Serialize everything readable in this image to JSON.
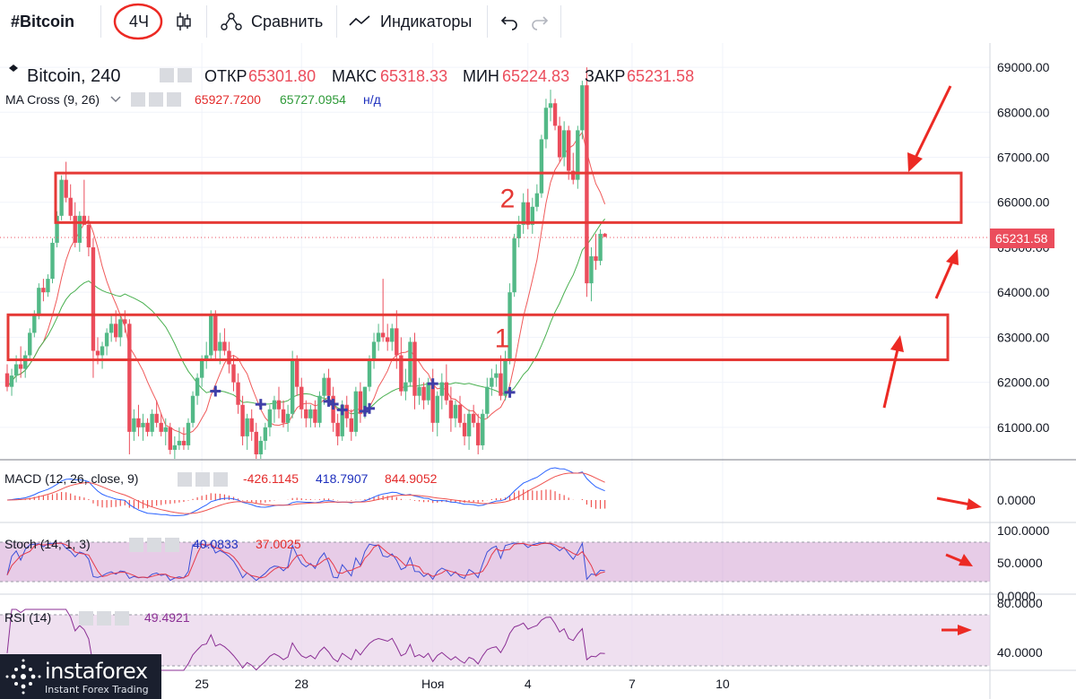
{
  "toolbar": {
    "symbol": "#Bitcoin",
    "interval": "4Ч",
    "compare_label": "Сравнить",
    "indicators_label": "Индикаторы"
  },
  "legend": {
    "title": "Bitcoin, 240",
    "open_label": "ОТКР",
    "open_value": "65301.80",
    "high_label": "МАКС",
    "high_value": "65318.33",
    "low_label": "МИН",
    "low_value": "65224.83",
    "close_label": "ЗАКР",
    "close_value": "65231.58",
    "ma_label": "MA Cross (9, 26)",
    "ma_fast": "65927.7200",
    "ma_slow": "65727.0954",
    "ma_na": "н/д"
  },
  "macd": {
    "label": "MACD (12, 26, close, 9)",
    "v1": "-426.1145",
    "v2": "418.7907",
    "v3": "844.9052"
  },
  "stoch": {
    "label": "Stoch (14, 1, 3)",
    "v1": "40.0833",
    "v2": "37.0025"
  },
  "rsi": {
    "label": "RSI (14)",
    "v1": "49.4921"
  },
  "zones": [
    {
      "label": "1",
      "top": 63500,
      "bottom": 62500
    },
    {
      "label": "2",
      "top": 66650,
      "bottom": 65550
    }
  ],
  "price_tag": "65231.58",
  "watermark": {
    "name": "instaforex",
    "sub": "Instant Forex Trading"
  },
  "colors": {
    "up": "#53b987",
    "down": "#eb4d5c",
    "zone": "#e53935",
    "arrow": "#ec2a24",
    "ma_fast": "#f05a5a",
    "ma_slow": "#49b050",
    "macd_line": "#2962ff",
    "signal_line": "#ef5350",
    "stoch_fill": "#c98fc9",
    "rsi_fill": "#e8d3ea"
  },
  "chart_data": {
    "type": "candlestick",
    "title": "Bitcoin, 240",
    "ylim": [
      60300,
      69300
    ],
    "y_ticks": [
      61000,
      62000,
      63000,
      64000,
      65000,
      66000,
      67000,
      68000,
      69000
    ],
    "y_tick_labels": [
      "61000.00",
      "62000.00",
      "63000.00",
      "64000.00",
      "65000.00",
      "66000.00",
      "67000.00",
      "68000.00",
      "69000.00"
    ],
    "x_tick_labels": [
      "25",
      "28",
      "Ноя",
      "4",
      "7",
      "10"
    ],
    "x_tick_bar_index": [
      43,
      65,
      94,
      115,
      138,
      158
    ],
    "candles": [
      [
        62200,
        62400,
        61800,
        61900
      ],
      [
        61900,
        62300,
        61700,
        62150
      ],
      [
        62150,
        62600,
        62000,
        62400
      ],
      [
        62400,
        62800,
        62100,
        62300
      ],
      [
        62300,
        62700,
        62100,
        62600
      ],
      [
        62600,
        63200,
        62500,
        63100
      ],
      [
        63100,
        63600,
        63000,
        63500
      ],
      [
        63500,
        64200,
        63400,
        64100
      ],
      [
        64100,
        64300,
        63800,
        64000
      ],
      [
        64000,
        64400,
        63900,
        64300
      ],
      [
        64300,
        65200,
        64200,
        65100
      ],
      [
        65100,
        65800,
        65000,
        65700
      ],
      [
        65700,
        66600,
        65600,
        66500
      ],
      [
        66500,
        66900,
        66000,
        66100
      ],
      [
        66100,
        66400,
        65600,
        65700
      ],
      [
        65700,
        66000,
        65000,
        65100
      ],
      [
        65100,
        65800,
        64900,
        65700
      ],
      [
        65700,
        66500,
        65500,
        65500
      ],
      [
        65500,
        65700,
        64800,
        65000
      ],
      [
        65000,
        65200,
        62100,
        62700
      ],
      [
        62700,
        63000,
        62400,
        62600
      ],
      [
        62600,
        62900,
        62300,
        62800
      ],
      [
        62800,
        63200,
        62600,
        63100
      ],
      [
        63100,
        63500,
        62900,
        63300
      ],
      [
        63300,
        63600,
        62900,
        63000
      ],
      [
        63000,
        63500,
        62800,
        63400
      ],
      [
        63400,
        63600,
        63100,
        63300
      ],
      [
        63300,
        63400,
        60400,
        60900
      ],
      [
        60900,
        61400,
        60700,
        61200
      ],
      [
        61200,
        61500,
        60800,
        61000
      ],
      [
        61000,
        61300,
        60700,
        61100
      ],
      [
        61100,
        61200,
        60800,
        60900
      ],
      [
        60900,
        61400,
        60800,
        61300
      ],
      [
        61300,
        61600,
        61000,
        61100
      ],
      [
        61100,
        61300,
        60800,
        60900
      ],
      [
        60900,
        61200,
        60600,
        61000
      ],
      [
        61000,
        61100,
        60400,
        60500
      ],
      [
        60500,
        60800,
        60300,
        60600
      ],
      [
        60600,
        61000,
        60500,
        60700
      ],
      [
        60700,
        61000,
        60500,
        60600
      ],
      [
        60600,
        61200,
        60500,
        61100
      ],
      [
        61100,
        61800,
        61000,
        61700
      ],
      [
        61700,
        62200,
        61500,
        62100
      ],
      [
        62100,
        62600,
        61900,
        62500
      ],
      [
        62500,
        62900,
        62300,
        62600
      ],
      [
        62600,
        63600,
        62500,
        63500
      ],
      [
        63500,
        63600,
        62500,
        62700
      ],
      [
        62700,
        63100,
        62400,
        62900
      ],
      [
        62900,
        63200,
        62600,
        62700
      ],
      [
        62700,
        62900,
        62200,
        62400
      ],
      [
        62400,
        62600,
        61800,
        62000
      ],
      [
        62000,
        62200,
        61300,
        61500
      ],
      [
        61500,
        61700,
        60600,
        60800
      ],
      [
        60800,
        61300,
        60500,
        61200
      ],
      [
        61200,
        61400,
        60700,
        60900
      ],
      [
        60900,
        61100,
        60300,
        60400
      ],
      [
        60400,
        60800,
        60300,
        60700
      ],
      [
        60700,
        61100,
        60500,
        61000
      ],
      [
        61000,
        61500,
        60800,
        61400
      ],
      [
        61400,
        61700,
        61100,
        61600
      ],
      [
        61600,
        61900,
        61200,
        61400
      ],
      [
        61400,
        61600,
        61000,
        61100
      ],
      [
        61100,
        61500,
        60900,
        61300
      ],
      [
        61300,
        62700,
        61200,
        62500
      ],
      [
        62500,
        62600,
        61700,
        61900
      ],
      [
        61900,
        62100,
        61200,
        61400
      ],
      [
        61400,
        61600,
        61000,
        61200
      ],
      [
        61200,
        61500,
        61000,
        61400
      ],
      [
        61400,
        61600,
        61000,
        61100
      ],
      [
        61100,
        61800,
        61000,
        61700
      ],
      [
        61700,
        62200,
        61500,
        62100
      ],
      [
        62100,
        62300,
        61600,
        61700
      ],
      [
        61700,
        61900,
        60900,
        61100
      ],
      [
        61100,
        61300,
        60600,
        60800
      ],
      [
        60800,
        61600,
        60700,
        61500
      ],
      [
        61500,
        61700,
        61000,
        61200
      ],
      [
        61200,
        61400,
        60700,
        60900
      ],
      [
        60900,
        61900,
        60800,
        61800
      ],
      [
        61800,
        62000,
        61100,
        61300
      ],
      [
        61300,
        61900,
        61200,
        61900
      ],
      [
        61900,
        62600,
        61800,
        62500
      ],
      [
        62500,
        63100,
        62300,
        62900
      ],
      [
        62900,
        63300,
        62700,
        63100
      ],
      [
        63100,
        64300,
        62900,
        63000
      ],
      [
        63000,
        63300,
        62700,
        62900
      ],
      [
        62900,
        63300,
        62700,
        63200
      ],
      [
        63200,
        63600,
        62300,
        62600
      ],
      [
        62600,
        63000,
        61700,
        61800
      ],
      [
        61800,
        62300,
        61600,
        62000
      ],
      [
        62000,
        63000,
        61900,
        62900
      ],
      [
        62900,
        63100,
        61400,
        61700
      ],
      [
        61700,
        62100,
        61500,
        61900
      ],
      [
        61900,
        62000,
        61400,
        61600
      ],
      [
        61600,
        62100,
        61500,
        62000
      ],
      [
        62000,
        62300,
        60900,
        61100
      ],
      [
        61100,
        61800,
        60800,
        61700
      ],
      [
        61700,
        62200,
        61400,
        62000
      ],
      [
        62000,
        62400,
        61500,
        61600
      ],
      [
        61600,
        61900,
        60900,
        61200
      ],
      [
        61200,
        61600,
        61000,
        61500
      ],
      [
        61500,
        61700,
        61000,
        61100
      ],
      [
        61100,
        61300,
        60600,
        60800
      ],
      [
        60800,
        61400,
        60500,
        61300
      ],
      [
        61300,
        61500,
        61000,
        61100
      ],
      [
        61100,
        61300,
        60400,
        60600
      ],
      [
        60600,
        61400,
        60500,
        61300
      ],
      [
        61300,
        62100,
        61200,
        61900
      ],
      [
        61900,
        62300,
        61700,
        62100
      ],
      [
        62100,
        62400,
        61900,
        62200
      ],
      [
        62200,
        62600,
        61600,
        61700
      ],
      [
        61700,
        62700,
        61600,
        62500
      ],
      [
        62500,
        64200,
        62400,
        64000
      ],
      [
        64000,
        65300,
        63900,
        65200
      ],
      [
        65200,
        65700,
        65000,
        65500
      ],
      [
        65500,
        66200,
        65300,
        66000
      ],
      [
        66000,
        66300,
        65400,
        65500
      ],
      [
        65500,
        66100,
        65300,
        65900
      ],
      [
        65900,
        66400,
        65800,
        66200
      ],
      [
        66200,
        67500,
        66100,
        67400
      ],
      [
        67400,
        68300,
        67200,
        68100
      ],
      [
        68100,
        68500,
        67800,
        68200
      ],
      [
        68200,
        68300,
        67600,
        67700
      ],
      [
        67700,
        67900,
        66900,
        67000
      ],
      [
        67000,
        67800,
        66800,
        67600
      ],
      [
        67600,
        67700,
        66500,
        66700
      ],
      [
        66700,
        67100,
        66400,
        66500
      ],
      [
        66500,
        67700,
        66300,
        67600
      ],
      [
        67600,
        68700,
        67400,
        68600
      ],
      [
        68600,
        69000,
        63900,
        64200
      ],
      [
        64200,
        65000,
        63800,
        64800
      ],
      [
        64800,
        65300,
        64500,
        64700
      ],
      [
        64700,
        65400,
        64600,
        65300
      ],
      [
        65301.8,
        65318.33,
        65224.83,
        65231.58
      ]
    ]
  }
}
